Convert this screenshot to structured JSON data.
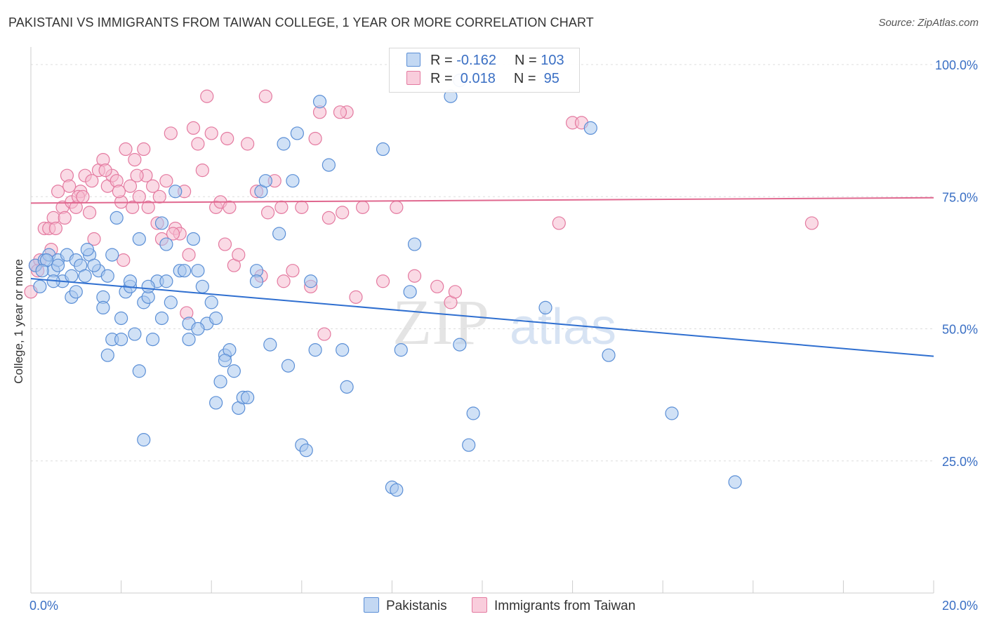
{
  "title": "PAKISTANI VS IMMIGRANTS FROM TAIWAN COLLEGE, 1 YEAR OR MORE CORRELATION CHART",
  "source": "Source: ZipAtlas.com",
  "watermark": {
    "zip": "ZIP",
    "atlas": "atlas"
  },
  "colors": {
    "blue_fill": "#a9c8ef",
    "blue_stroke": "#5b8fd6",
    "blue_line": "#2f6fd0",
    "pink_fill": "#f6bcd0",
    "pink_stroke": "#e47aa0",
    "pink_line": "#e0688f",
    "axis_text": "#3a6fc4",
    "grid": "#dddddd"
  },
  "legend": {
    "rows": [
      {
        "r_label": "R = ",
        "r_value": "-0.162",
        "n_label": "N = ",
        "n_value": "103"
      },
      {
        "r_label": "R = ",
        "r_value": " 0.018",
        "n_label": "N = ",
        "n_value": " 95"
      }
    ]
  },
  "bottom_legend": {
    "series1": "Pakistanis",
    "series2": "Immigrants from Taiwan"
  },
  "chart_data": {
    "type": "scatter",
    "xlabel": "",
    "ylabel": "College, 1 year or more",
    "xlim": [
      0,
      20
    ],
    "ylim": [
      0,
      102
    ],
    "x_tick_labels": [
      {
        "value": 0,
        "label": "0.0%"
      },
      {
        "value": 20,
        "label": "20.0%"
      }
    ],
    "y_tick_labels": [
      {
        "value": 25,
        "label": "25.0%"
      },
      {
        "value": 50,
        "label": "50.0%"
      },
      {
        "value": 75,
        "label": "75.0%"
      },
      {
        "value": 100,
        "label": "100.0%"
      }
    ],
    "grid": "horizontal dashed",
    "series": [
      {
        "name": "Pakistanis",
        "color": "#a9c8ef",
        "trend": {
          "x": [
            0,
            20
          ],
          "y": [
            59.5,
            44.8
          ]
        },
        "points": [
          [
            0.1,
            62
          ],
          [
            0.3,
            63
          ],
          [
            0.2,
            58
          ],
          [
            0.4,
            64
          ],
          [
            0.5,
            61
          ],
          [
            0.6,
            63
          ],
          [
            0.7,
            59
          ],
          [
            0.8,
            64
          ],
          [
            0.9,
            56
          ],
          [
            1.0,
            63
          ],
          [
            1.1,
            62
          ],
          [
            1.2,
            60
          ],
          [
            1.3,
            64
          ],
          [
            1.5,
            61
          ],
          [
            1.6,
            56
          ],
          [
            1.7,
            60
          ],
          [
            1.8,
            64
          ],
          [
            1.9,
            71
          ],
          [
            2.0,
            52
          ],
          [
            2.1,
            57
          ],
          [
            2.2,
            58
          ],
          [
            2.3,
            49
          ],
          [
            2.4,
            67
          ],
          [
            2.5,
            55
          ],
          [
            2.6,
            56
          ],
          [
            2.7,
            48
          ],
          [
            2.8,
            59
          ],
          [
            2.9,
            52
          ],
          [
            3.0,
            66
          ],
          [
            3.1,
            55
          ],
          [
            3.2,
            76
          ],
          [
            3.3,
            61
          ],
          [
            3.5,
            48
          ],
          [
            3.6,
            67
          ],
          [
            3.7,
            61
          ],
          [
            3.9,
            51
          ],
          [
            4.0,
            55
          ],
          [
            4.1,
            36
          ],
          [
            4.2,
            40
          ],
          [
            4.3,
            45
          ],
          [
            4.4,
            46
          ],
          [
            4.5,
            42
          ],
          [
            4.6,
            35
          ],
          [
            4.7,
            37
          ],
          [
            4.8,
            37
          ],
          [
            5.0,
            61
          ],
          [
            5.1,
            76
          ],
          [
            5.2,
            78
          ],
          [
            5.3,
            47
          ],
          [
            5.5,
            68
          ],
          [
            5.6,
            85
          ],
          [
            5.7,
            43
          ],
          [
            5.8,
            78
          ],
          [
            5.9,
            87
          ],
          [
            6.0,
            28
          ],
          [
            6.1,
            27
          ],
          [
            6.2,
            59
          ],
          [
            6.3,
            46
          ],
          [
            6.6,
            81
          ],
          [
            6.9,
            46
          ],
          [
            7.0,
            39
          ],
          [
            7.8,
            84
          ],
          [
            8.2,
            46
          ],
          [
            8.4,
            57
          ],
          [
            8.5,
            66
          ],
          [
            9.3,
            94
          ],
          [
            9.5,
            47
          ],
          [
            9.7,
            28
          ],
          [
            9.8,
            34
          ],
          [
            11.4,
            54
          ],
          [
            12.4,
            88
          ],
          [
            12.8,
            45
          ],
          [
            14.2,
            34
          ],
          [
            15.6,
            21
          ],
          [
            8.0,
            20
          ],
          [
            8.1,
            19.5
          ],
          [
            2.5,
            29
          ],
          [
            1.8,
            48
          ],
          [
            3.4,
            61
          ],
          [
            2.9,
            70
          ],
          [
            1.4,
            62
          ],
          [
            0.9,
            60
          ],
          [
            0.6,
            62
          ],
          [
            0.35,
            63
          ],
          [
            0.25,
            61
          ],
          [
            1.25,
            65
          ],
          [
            2.6,
            58
          ],
          [
            3.8,
            58
          ],
          [
            4.1,
            52
          ],
          [
            1.6,
            54
          ],
          [
            2.2,
            59
          ],
          [
            3.5,
            51
          ],
          [
            2.0,
            48
          ],
          [
            1.0,
            57
          ],
          [
            0.5,
            59
          ],
          [
            1.7,
            45
          ],
          [
            5.0,
            59
          ],
          [
            3.7,
            50
          ],
          [
            4.3,
            44
          ],
          [
            2.4,
            42
          ],
          [
            3.0,
            59
          ],
          [
            6.4,
            93
          ],
          [
            9.5,
            97
          ]
        ]
      },
      {
        "name": "Immigrants from Taiwan",
        "color": "#f6bcd0",
        "trend": {
          "x": [
            0,
            20
          ],
          "y": [
            73.8,
            74.8
          ]
        },
        "points": [
          [
            0.0,
            57
          ],
          [
            0.1,
            62
          ],
          [
            0.2,
            63
          ],
          [
            0.3,
            69
          ],
          [
            0.4,
            69
          ],
          [
            0.5,
            71
          ],
          [
            0.6,
            76
          ],
          [
            0.7,
            73
          ],
          [
            0.8,
            79
          ],
          [
            0.9,
            74
          ],
          [
            1.0,
            73
          ],
          [
            1.1,
            76
          ],
          [
            1.2,
            79
          ],
          [
            1.3,
            72
          ],
          [
            1.4,
            67
          ],
          [
            1.5,
            80
          ],
          [
            1.6,
            82
          ],
          [
            1.7,
            77
          ],
          [
            1.8,
            79
          ],
          [
            1.9,
            78
          ],
          [
            2.0,
            74
          ],
          [
            2.1,
            84
          ],
          [
            2.2,
            77
          ],
          [
            2.3,
            82
          ],
          [
            2.4,
            75
          ],
          [
            2.5,
            84
          ],
          [
            2.6,
            73
          ],
          [
            2.7,
            77
          ],
          [
            2.8,
            70
          ],
          [
            2.9,
            67
          ],
          [
            3.0,
            78
          ],
          [
            3.1,
            87
          ],
          [
            3.2,
            69
          ],
          [
            3.3,
            68
          ],
          [
            3.4,
            76
          ],
          [
            3.5,
            64
          ],
          [
            3.6,
            88
          ],
          [
            3.7,
            85
          ],
          [
            3.8,
            80
          ],
          [
            3.9,
            94
          ],
          [
            4.0,
            87
          ],
          [
            4.1,
            73
          ],
          [
            4.2,
            74
          ],
          [
            4.3,
            66
          ],
          [
            4.4,
            73
          ],
          [
            4.5,
            62
          ],
          [
            4.6,
            64
          ],
          [
            4.8,
            85
          ],
          [
            5.0,
            76
          ],
          [
            5.1,
            60
          ],
          [
            5.2,
            94
          ],
          [
            5.4,
            78
          ],
          [
            5.6,
            59
          ],
          [
            5.8,
            61
          ],
          [
            6.0,
            73
          ],
          [
            6.2,
            58
          ],
          [
            6.3,
            86
          ],
          [
            6.4,
            91
          ],
          [
            6.5,
            49
          ],
          [
            6.6,
            71
          ],
          [
            6.9,
            72
          ],
          [
            7.0,
            91
          ],
          [
            7.2,
            56
          ],
          [
            7.8,
            59
          ],
          [
            8.1,
            73
          ],
          [
            8.5,
            60
          ],
          [
            9.0,
            58
          ],
          [
            9.3,
            55
          ],
          [
            9.4,
            57
          ],
          [
            11.7,
            70
          ],
          [
            12.0,
            89
          ],
          [
            12.2,
            89
          ],
          [
            17.3,
            70
          ],
          [
            0.15,
            61
          ],
          [
            0.45,
            65
          ],
          [
            0.75,
            71
          ],
          [
            1.05,
            75
          ],
          [
            1.35,
            78
          ],
          [
            1.65,
            80
          ],
          [
            1.95,
            76
          ],
          [
            2.25,
            73
          ],
          [
            2.55,
            79
          ],
          [
            2.85,
            75
          ],
          [
            3.15,
            68
          ],
          [
            3.45,
            53
          ],
          [
            0.55,
            69
          ],
          [
            0.85,
            77
          ],
          [
            1.15,
            75
          ],
          [
            2.05,
            63
          ],
          [
            2.35,
            79
          ],
          [
            4.35,
            86
          ],
          [
            5.55,
            73
          ],
          [
            6.85,
            91
          ],
          [
            7.35,
            73
          ],
          [
            5.25,
            72
          ]
        ]
      }
    ]
  }
}
